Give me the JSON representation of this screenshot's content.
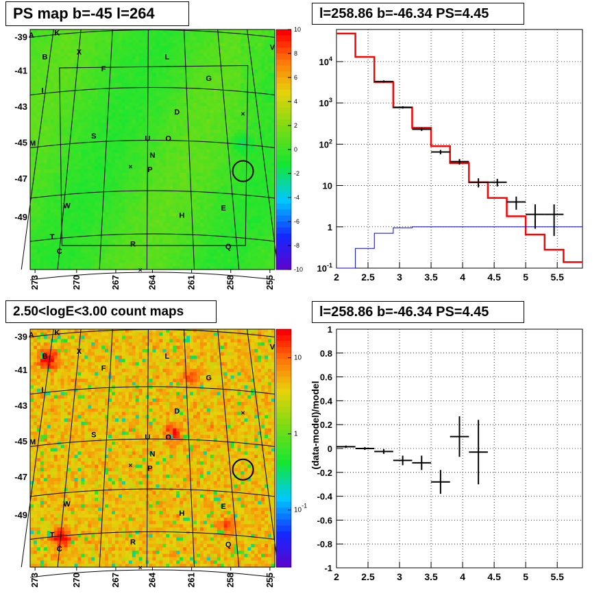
{
  "panels": {
    "tl_title": "PS map b=-45 l=264",
    "tr_title": "l=258.86 b=-46.34 PS=4.45",
    "bl_title": "2.50<logE<3.00 count maps",
    "br_title": "l=258.86 b=-46.34 PS=4.45"
  },
  "chart_data": [
    {
      "id": "ps-map",
      "type": "heatmap",
      "title": "PS map b=-45 l=264",
      "colorbar_ticks": [
        "10",
        "8",
        "6",
        "4",
        "2",
        "0",
        "-2",
        "-4",
        "-6",
        "-8",
        "-10"
      ],
      "colorbar_range": [
        -10,
        10
      ],
      "x_ticks": [
        "273",
        "270",
        "267",
        "264",
        "261",
        "258",
        "255"
      ],
      "y_ticks": [
        "-39",
        "-41",
        "-43",
        "-45",
        "-47",
        "-49"
      ],
      "labels": [
        "A",
        "K",
        "B",
        "X",
        "L",
        "V",
        "F",
        "I",
        "G",
        "D",
        "M",
        "S",
        "U",
        "O",
        "N",
        "P",
        "W",
        "E",
        "H",
        "T",
        "R",
        "Q",
        "C"
      ],
      "marker": "circle at l=258.86 b=-46.34"
    },
    {
      "id": "spectrum",
      "type": "line",
      "title": "l=258.86 b=-46.34 PS=4.45",
      "y_scale": "log",
      "xlim": [
        2,
        5.9
      ],
      "ylim": [
        0.1,
        60000
      ],
      "x_ticks": [
        "2",
        "2.5",
        "3",
        "3.5",
        "4",
        "4.5",
        "5",
        "5.5"
      ],
      "y_ticks": [
        "10^-1",
        "1",
        "10",
        "10^2",
        "10^3",
        "10^4"
      ],
      "grid": true,
      "series": [
        {
          "color": "#ff0000",
          "edges": [
            2,
            2.3,
            2.6,
            2.9,
            3.2,
            3.5,
            3.8,
            4.1,
            4.4,
            4.7,
            5.0,
            5.3,
            5.6,
            5.9
          ],
          "values": [
            48000,
            13000,
            3200,
            780,
            250,
            90,
            35,
            12,
            5,
            1.8,
            0.65,
            0.28,
            0.14
          ]
        },
        {
          "color": "#0000cc",
          "edges": [
            2,
            2.3,
            2.6,
            2.9,
            3.2,
            3.5,
            3.8,
            4.1,
            4.4,
            4.7,
            5.0,
            5.3,
            5.6,
            5.9
          ],
          "values": [
            0.04,
            0.3,
            0.7,
            0.95,
            1,
            1,
            1,
            1,
            1,
            1,
            1,
            1,
            1
          ]
        },
        {
          "color": "#000000",
          "type": "errorbars",
          "x": [
            2.75,
            3.05,
            3.35,
            3.65,
            3.95,
            4.25,
            4.55,
            4.85,
            5.15,
            5.45
          ],
          "y": [
            3300,
            780,
            230,
            65,
            38,
            12,
            12,
            4,
            2,
            2
          ],
          "xerr": [
            0.15,
            0.15,
            0.15,
            0.15,
            0.15,
            0.15,
            0.15,
            0.15,
            0.15,
            0.15
          ],
          "ylo": [
            3100,
            730,
            210,
            57,
            32,
            9,
            9.5,
            2.6,
            0.9,
            0.6
          ],
          "yhi": [
            3500,
            830,
            250,
            73,
            44,
            15,
            14.5,
            5.4,
            3.5,
            3.5
          ]
        }
      ]
    },
    {
      "id": "count-map",
      "type": "heatmap",
      "title": "2.50<logE<3.00 count maps",
      "colorbar_ticks": [
        "10",
        "1",
        "10^-1"
      ],
      "colorbar_scale": "log",
      "x_ticks": [
        "273",
        "270",
        "267",
        "264",
        "261",
        "258",
        "255"
      ],
      "y_ticks": [
        "-39",
        "-41",
        "-43",
        "-45",
        "-47",
        "-49"
      ],
      "labels": [
        "A",
        "K",
        "B",
        "X",
        "L",
        "V",
        "F",
        "I",
        "G",
        "D",
        "M",
        "S",
        "U",
        "O",
        "N",
        "P",
        "W",
        "E",
        "H",
        "T",
        "R",
        "Q",
        "C"
      ]
    },
    {
      "id": "residual",
      "type": "scatter",
      "title": "l=258.86 b=-46.34 PS=4.45",
      "ylabel": "(data-model)/model",
      "xlim": [
        2,
        5.9
      ],
      "ylim": [
        -1,
        1
      ],
      "x_ticks": [
        "2",
        "2.5",
        "3",
        "3.5",
        "4",
        "4.5",
        "5",
        "5.5"
      ],
      "y_ticks": [
        "1",
        "0.8",
        "0.6",
        "0.4",
        "0.2",
        "0",
        "-0.2",
        "-0.4",
        "-0.6",
        "-0.8",
        "-1"
      ],
      "grid": true,
      "points": [
        {
          "x": 2.15,
          "y": 0.015,
          "xerr": 0.15,
          "yerr": 0.01
        },
        {
          "x": 2.45,
          "y": 0.0,
          "xerr": 0.15,
          "yerr": 0.012
        },
        {
          "x": 2.75,
          "y": -0.025,
          "xerr": 0.15,
          "yerr": 0.02
        },
        {
          "x": 3.05,
          "y": -0.1,
          "xerr": 0.15,
          "yerr": 0.04
        },
        {
          "x": 3.35,
          "y": -0.12,
          "xerr": 0.15,
          "yerr": 0.06
        },
        {
          "x": 3.65,
          "y": -0.28,
          "xerr": 0.15,
          "yerr": 0.1
        },
        {
          "x": 3.95,
          "y": 0.1,
          "xerr": 0.15,
          "yerr": 0.17
        },
        {
          "x": 4.25,
          "y": -0.03,
          "xerr": 0.15,
          "yerr": 0.27
        }
      ]
    }
  ]
}
